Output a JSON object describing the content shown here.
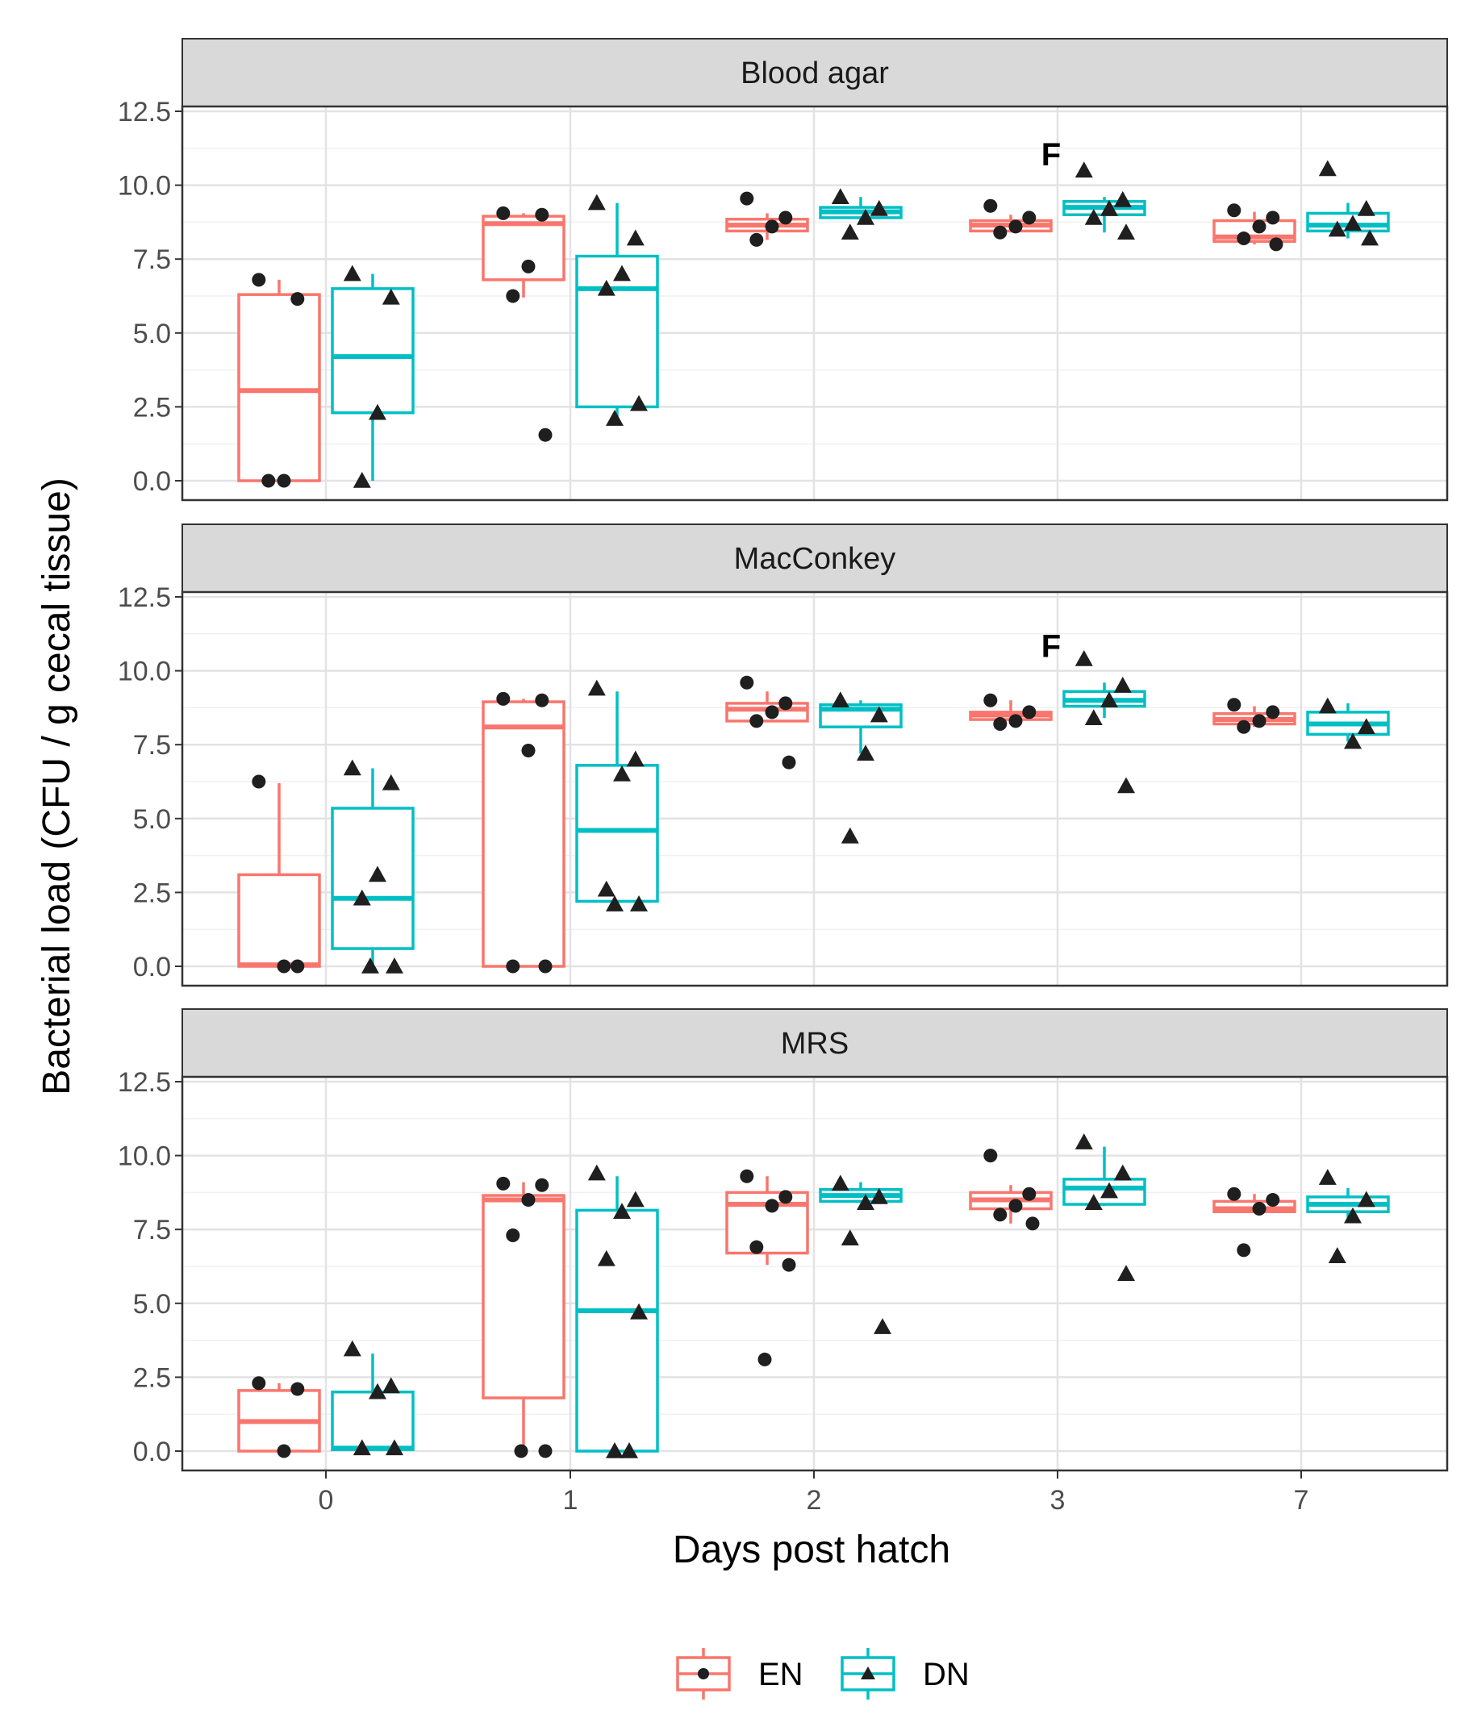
{
  "chart_data": {
    "type": "box",
    "xlabel": "Days post hatch",
    "ylabel": "Bacterial load (CFU / g cecal tissue)",
    "categories": [
      "0",
      "1",
      "2",
      "3",
      "7"
    ],
    "y_ticks": [
      "0.0",
      "2.5",
      "5.0",
      "7.5",
      "10.0",
      "12.5"
    ],
    "ylim": [
      0,
      12.5
    ],
    "grid": true,
    "legend_position": "bottom",
    "groups": [
      {
        "name": "EN",
        "color": "#F8766D",
        "marker": "circle"
      },
      {
        "name": "DN",
        "color": "#00BFC4",
        "marker": "triangle"
      }
    ],
    "panels": [
      {
        "title": "Blood agar",
        "annotations": [
          {
            "text": "F",
            "category": "3",
            "y": 11.0
          }
        ],
        "boxes": [
          {
            "group": "EN",
            "category": "0",
            "min": 0.0,
            "q1": 0.0,
            "median": 3.05,
            "q3": 6.3,
            "max": 6.8,
            "points": [
              6.8,
              6.15,
              0.0,
              0.0
            ]
          },
          {
            "group": "DN",
            "category": "0",
            "min": 0.0,
            "q1": 2.3,
            "median": 4.2,
            "q3": 6.5,
            "max": 7.0,
            "points": [
              7.0,
              6.2,
              2.3,
              0.0
            ]
          },
          {
            "group": "EN",
            "category": "1",
            "min": 6.2,
            "q1": 6.8,
            "median": 8.7,
            "q3": 8.95,
            "max": 9.05,
            "points": [
              9.05,
              9.0,
              7.25,
              6.25,
              1.55
            ]
          },
          {
            "group": "DN",
            "category": "1",
            "min": 2.1,
            "q1": 2.5,
            "median": 6.5,
            "q3": 7.6,
            "max": 9.4,
            "points": [
              9.4,
              8.2,
              7.0,
              6.5,
              2.6,
              2.1
            ]
          },
          {
            "group": "EN",
            "category": "2",
            "min": 8.15,
            "q1": 8.45,
            "median": 8.65,
            "q3": 8.85,
            "max": 9.05,
            "points": [
              9.55,
              8.9,
              8.6,
              8.15
            ]
          },
          {
            "group": "DN",
            "category": "2",
            "min": 8.8,
            "q1": 8.9,
            "median": 9.1,
            "q3": 9.25,
            "max": 9.6,
            "points": [
              9.6,
              9.2,
              8.9,
              8.4
            ]
          },
          {
            "group": "EN",
            "category": "3",
            "min": 8.4,
            "q1": 8.45,
            "median": 8.65,
            "q3": 8.8,
            "max": 9.0,
            "points": [
              9.3,
              8.9,
              8.6,
              8.4
            ]
          },
          {
            "group": "DN",
            "category": "3",
            "min": 8.4,
            "q1": 9.0,
            "median": 9.25,
            "q3": 9.45,
            "max": 9.6,
            "points": [
              10.5,
              9.5,
              9.2,
              8.9,
              8.4
            ]
          },
          {
            "group": "EN",
            "category": "7",
            "min": 8.0,
            "q1": 8.1,
            "median": 8.25,
            "q3": 8.8,
            "max": 9.1,
            "points": [
              9.15,
              8.9,
              8.6,
              8.2,
              8.0
            ]
          },
          {
            "group": "DN",
            "category": "7",
            "min": 8.2,
            "q1": 8.45,
            "median": 8.65,
            "q3": 9.05,
            "max": 9.4,
            "points": [
              10.55,
              9.2,
              8.7,
              8.5,
              8.2
            ]
          }
        ]
      },
      {
        "title": "MacConkey",
        "annotations": [
          {
            "text": "F",
            "category": "3",
            "y": 10.8
          }
        ],
        "boxes": [
          {
            "group": "EN",
            "category": "0",
            "min": 0.0,
            "q1": 0.0,
            "median": 0.05,
            "q3": 3.1,
            "max": 6.2,
            "points": [
              6.25,
              0.0,
              0.0
            ]
          },
          {
            "group": "DN",
            "category": "0",
            "min": 0.0,
            "q1": 0.6,
            "median": 2.3,
            "q3": 5.35,
            "max": 6.7,
            "points": [
              6.7,
              6.2,
              3.1,
              2.3,
              0.0,
              0.0
            ]
          },
          {
            "group": "EN",
            "category": "1",
            "min": 0.0,
            "q1": 0.0,
            "median": 8.1,
            "q3": 8.95,
            "max": 9.05,
            "points": [
              9.05,
              9.0,
              7.3,
              0.0,
              0.0
            ]
          },
          {
            "group": "DN",
            "category": "1",
            "min": 2.1,
            "q1": 2.2,
            "median": 4.6,
            "q3": 6.8,
            "max": 9.3,
            "points": [
              9.4,
              7.0,
              6.5,
              2.6,
              2.1,
              2.1
            ]
          },
          {
            "group": "EN",
            "category": "2",
            "min": 8.3,
            "q1": 8.3,
            "median": 8.7,
            "q3": 8.9,
            "max": 9.3,
            "points": [
              9.6,
              8.9,
              8.6,
              8.3,
              6.9
            ]
          },
          {
            "group": "DN",
            "category": "2",
            "min": 7.2,
            "q1": 8.1,
            "median": 8.7,
            "q3": 8.85,
            "max": 9.0,
            "points": [
              9.0,
              8.5,
              7.2,
              4.4
            ]
          },
          {
            "group": "EN",
            "category": "3",
            "min": 8.2,
            "q1": 8.35,
            "median": 8.5,
            "q3": 8.6,
            "max": 9.0,
            "points": [
              9.0,
              8.6,
              8.3,
              8.2
            ]
          },
          {
            "group": "DN",
            "category": "3",
            "min": 8.4,
            "q1": 8.8,
            "median": 9.0,
            "q3": 9.3,
            "max": 9.6,
            "points": [
              10.4,
              9.5,
              9.0,
              8.4,
              6.1
            ]
          },
          {
            "group": "EN",
            "category": "7",
            "min": 8.1,
            "q1": 8.2,
            "median": 8.35,
            "q3": 8.55,
            "max": 8.8,
            "points": [
              8.85,
              8.6,
              8.3,
              8.1
            ]
          },
          {
            "group": "DN",
            "category": "7",
            "min": 7.6,
            "q1": 7.85,
            "median": 8.2,
            "q3": 8.6,
            "max": 8.9,
            "points": [
              8.8,
              8.1,
              7.6
            ]
          }
        ]
      },
      {
        "title": "MRS",
        "annotations": [],
        "boxes": [
          {
            "group": "EN",
            "category": "0",
            "min": 0.0,
            "q1": 0.0,
            "median": 1.0,
            "q3": 2.05,
            "max": 2.3,
            "points": [
              2.3,
              2.1,
              0.0
            ]
          },
          {
            "group": "DN",
            "category": "0",
            "min": 0.0,
            "q1": 0.05,
            "median": 0.1,
            "q3": 2.0,
            "max": 3.3,
            "points": [
              3.45,
              2.2,
              2.0,
              0.1,
              0.1
            ]
          },
          {
            "group": "EN",
            "category": "1",
            "min": 0.0,
            "q1": 1.8,
            "median": 8.5,
            "q3": 8.65,
            "max": 9.1,
            "points": [
              9.05,
              9.0,
              8.5,
              7.3,
              0.0,
              0.0
            ]
          },
          {
            "group": "DN",
            "category": "1",
            "min": 0.0,
            "q1": 0.0,
            "median": 4.75,
            "q3": 8.15,
            "max": 9.3,
            "points": [
              9.4,
              8.5,
              8.1,
              6.5,
              4.7,
              0.0,
              0.0
            ]
          },
          {
            "group": "EN",
            "category": "2",
            "min": 6.3,
            "q1": 6.7,
            "median": 8.35,
            "q3": 8.75,
            "max": 9.3,
            "points": [
              9.3,
              8.6,
              8.3,
              6.9,
              6.3,
              3.1
            ]
          },
          {
            "group": "DN",
            "category": "2",
            "min": 8.4,
            "q1": 8.45,
            "median": 8.65,
            "q3": 8.85,
            "max": 9.1,
            "points": [
              9.05,
              8.6,
              8.4,
              7.2,
              4.2
            ]
          },
          {
            "group": "EN",
            "category": "3",
            "min": 7.7,
            "q1": 8.2,
            "median": 8.5,
            "q3": 8.75,
            "max": 9.0,
            "points": [
              10.0,
              8.7,
              8.3,
              8.0,
              7.7
            ]
          },
          {
            "group": "DN",
            "category": "3",
            "min": 8.3,
            "q1": 8.35,
            "median": 8.9,
            "q3": 9.2,
            "max": 10.3,
            "points": [
              10.45,
              9.4,
              8.8,
              8.4,
              6.0
            ]
          },
          {
            "group": "EN",
            "category": "7",
            "min": 8.1,
            "q1": 8.1,
            "median": 8.2,
            "q3": 8.45,
            "max": 8.7,
            "points": [
              8.7,
              8.5,
              8.2,
              6.8
            ]
          },
          {
            "group": "DN",
            "category": "7",
            "min": 7.9,
            "q1": 8.1,
            "median": 8.35,
            "q3": 8.6,
            "max": 8.9,
            "points": [
              9.25,
              8.5,
              7.95,
              6.6
            ]
          }
        ]
      }
    ]
  }
}
